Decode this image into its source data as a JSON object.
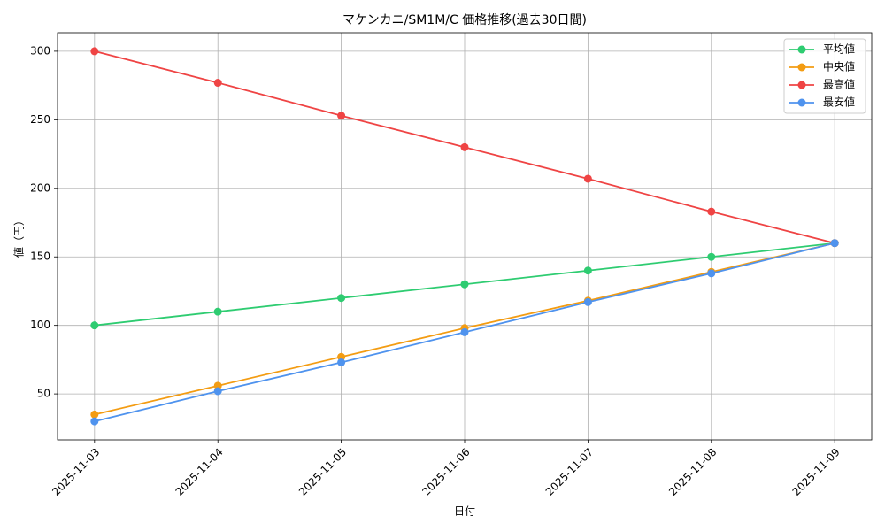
{
  "chart_data": {
    "type": "line",
    "title": "マケンカニ/SM1M/C 価格推移(過去30日間)",
    "x_label": "日付",
    "y_label": "値（円）",
    "categories": [
      "2025-11-03",
      "2025-11-04",
      "2025-11-05",
      "2025-11-06",
      "2025-11-07",
      "2025-11-08",
      "2025-11-09"
    ],
    "series": [
      {
        "name": "平均値",
        "color": "#2ecc71",
        "values": [
          100,
          110,
          120,
          130,
          140,
          150,
          160
        ]
      },
      {
        "name": "中央値",
        "color": "#f39c12",
        "values": [
          35,
          56,
          77,
          98,
          118,
          139,
          160
        ]
      },
      {
        "name": "最高値",
        "color": "#ef4444",
        "values": [
          300,
          277,
          253,
          230,
          207,
          183,
          160
        ]
      },
      {
        "name": "最安値",
        "color": "#4f93ee",
        "values": [
          30,
          52,
          73,
          95,
          117,
          138,
          160
        ]
      }
    ],
    "ylim": [
      16.5,
      313.5
    ],
    "yticks": [
      50,
      100,
      150,
      200,
      250,
      300
    ],
    "grid": true,
    "legend": "upper-right"
  }
}
